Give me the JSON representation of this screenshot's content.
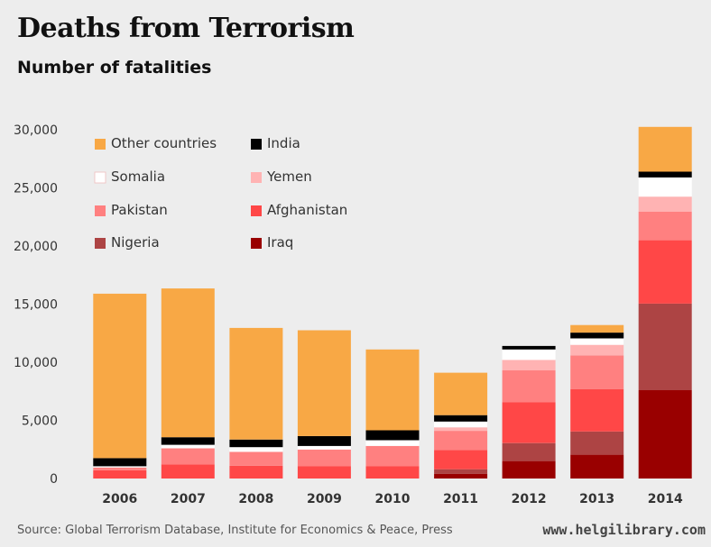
{
  "header": {
    "title": "Deaths from Terrorism",
    "subtitle": "Number of fatalities"
  },
  "footer": {
    "source": "Source: Global Terrorism Database, Institute for Economics & Peace, Press",
    "website": "www.helgilibrary.com"
  },
  "chart_data": {
    "type": "bar",
    "stacked": true,
    "title": "Deaths from Terrorism",
    "subtitle": "Number of fatalities",
    "xlabel": "",
    "ylabel": "",
    "ylim": [
      0,
      30000
    ],
    "yticks": [
      0,
      5000,
      10000,
      15000,
      20000,
      25000,
      30000
    ],
    "ytick_labels": [
      "0",
      "5,000",
      "10,000",
      "15,000",
      "20,000",
      "25,000",
      "30,000"
    ],
    "grid": false,
    "legend_position": "top-left",
    "categories": [
      "2006",
      "2007",
      "2008",
      "2009",
      "2010",
      "2011",
      "2012",
      "2013",
      "2014"
    ],
    "series": [
      {
        "name": "Iraq",
        "color": "#990000",
        "values": [
          0,
          0,
          0,
          0,
          0,
          400,
          1500,
          2050,
          7600
        ]
      },
      {
        "name": "Nigeria",
        "color": "#ad4444",
        "values": [
          0,
          0,
          0,
          0,
          0,
          400,
          1550,
          2000,
          7450
        ]
      },
      {
        "name": "Afghanistan",
        "color": "#ff4747",
        "values": [
          700,
          1200,
          1100,
          1050,
          1050,
          1650,
          3500,
          3650,
          5450
        ]
      },
      {
        "name": "Pakistan",
        "color": "#ff8080",
        "values": [
          250,
          1400,
          1200,
          1450,
          1750,
          1650,
          2750,
          2900,
          2450
        ]
      },
      {
        "name": "Yemen",
        "color": "#ffb3b3",
        "values": [
          0,
          0,
          0,
          0,
          0,
          300,
          900,
          900,
          1300
        ]
      },
      {
        "name": "Somalia",
        "color": "#ffffff",
        "values": [
          100,
          300,
          400,
          300,
          500,
          500,
          900,
          550,
          1650
        ]
      },
      {
        "name": "India",
        "color": "#000000",
        "values": [
          700,
          650,
          650,
          850,
          850,
          550,
          300,
          500,
          500
        ]
      },
      {
        "name": "Other countries",
        "color": "#f8a845",
        "values": [
          14150,
          12800,
          9600,
          9100,
          6950,
          3650,
          0,
          650,
          3850
        ]
      }
    ],
    "legend_order": [
      "Other countries",
      "India",
      "Somalia",
      "Yemen",
      "Pakistan",
      "Afghanistan",
      "Nigeria",
      "Iraq"
    ]
  }
}
